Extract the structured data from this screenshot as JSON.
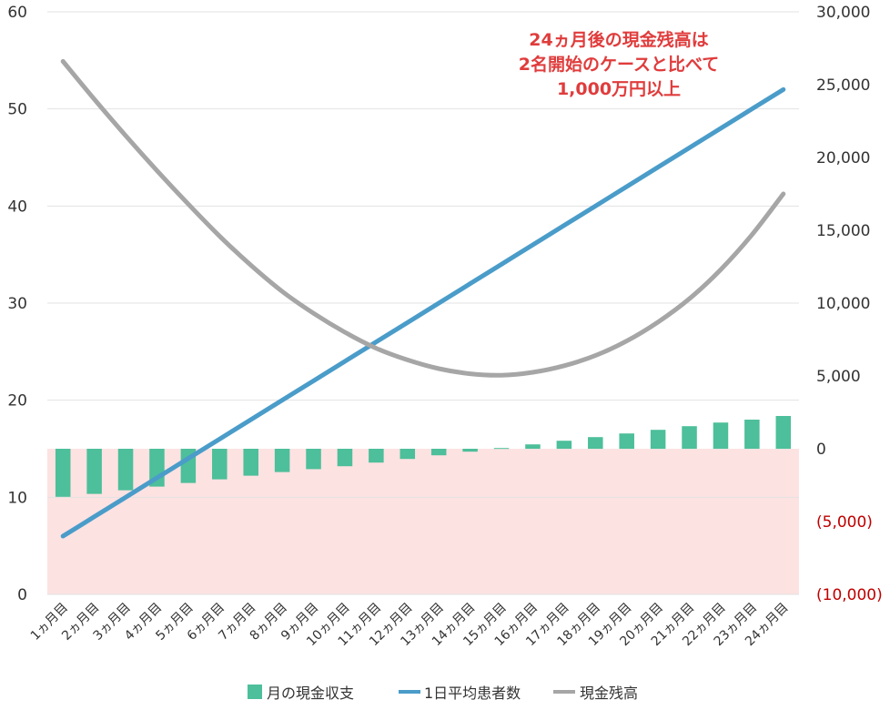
{
  "chart_data": {
    "type": "bar+line",
    "categories": [
      "1ヵ月目",
      "2ヵ月目",
      "3ヵ月目",
      "4ヵ月目",
      "5ヵ月目",
      "6ヵ月目",
      "7ヵ月目",
      "8ヵ月目",
      "9ヵ月目",
      "10ヵ月目",
      "11ヵ月目",
      "12ヵ月目",
      "13ヵ月目",
      "14ヵ月目",
      "15ヵ月目",
      "16ヵ月目",
      "17ヵ月目",
      "18ヵ月目",
      "19ヵ月目",
      "20ヵ月目",
      "21ヵ月目",
      "22ヵ月目",
      "23ヵ月目",
      "24ヵ月目"
    ],
    "left_axis": {
      "ylim": [
        0,
        60
      ],
      "ticks": [
        "0",
        "10",
        "20",
        "30",
        "40",
        "50",
        "60"
      ]
    },
    "right_axis": {
      "ylim": [
        -10000,
        30000
      ],
      "ticks": [
        {
          "value": -10000,
          "label": "(10,000)"
        },
        {
          "value": -5000,
          "label": "(5,000)"
        },
        {
          "value": 0,
          "label": "0"
        },
        {
          "value": 5000,
          "label": "5,000"
        },
        {
          "value": 10000,
          "label": "10,000"
        },
        {
          "value": 15000,
          "label": "15,000"
        },
        {
          "value": 20000,
          "label": "20,000"
        },
        {
          "value": 25000,
          "label": "25,000"
        },
        {
          "value": 30000,
          "label": "30,000"
        }
      ]
    },
    "negative_region": {
      "from": -10000,
      "to": 0,
      "color": "#fde2e2"
    },
    "series": [
      {
        "name": "月の現金収支",
        "kind": "bar",
        "axis": "right",
        "color": "#4dbf9a",
        "values": [
          -3300,
          -3100,
          -2850,
          -2600,
          -2350,
          -2100,
          -1850,
          -1600,
          -1400,
          -1200,
          -950,
          -700,
          -450,
          -200,
          50,
          300,
          550,
          800,
          1050,
          1300,
          1550,
          1800,
          2000,
          2250
        ]
      },
      {
        "name": "1日平均患者数",
        "kind": "line",
        "axis": "left",
        "color": "#4a9cc9",
        "values": [
          6,
          8,
          10,
          12,
          14,
          16,
          18,
          20,
          22,
          24,
          26,
          28,
          30,
          32,
          34,
          36,
          38,
          40,
          42,
          44,
          46,
          48,
          50,
          52
        ]
      },
      {
        "name": "現金残高",
        "kind": "line",
        "axis": "right",
        "color": "#a6a6a6",
        "values": [
          26600,
          24000,
          21500,
          19100,
          16800,
          14600,
          12600,
          10800,
          9300,
          8000,
          6900,
          6100,
          5500,
          5150,
          5050,
          5250,
          5700,
          6400,
          7400,
          8700,
          10300,
          12300,
          14700,
          17500
        ]
      }
    ],
    "annotation": [
      "24ヵ月後の現金残高は",
      "2名開始のケースと比べて",
      "1,000万円以上"
    ],
    "legend": {
      "position": "bottom",
      "items": [
        "月の現金収支",
        "1日平均患者数",
        "現金残高"
      ]
    },
    "colors": {
      "grid": "#e3e3e3",
      "annotation": "#e03c3c",
      "negative_tick": "#c00000"
    }
  }
}
